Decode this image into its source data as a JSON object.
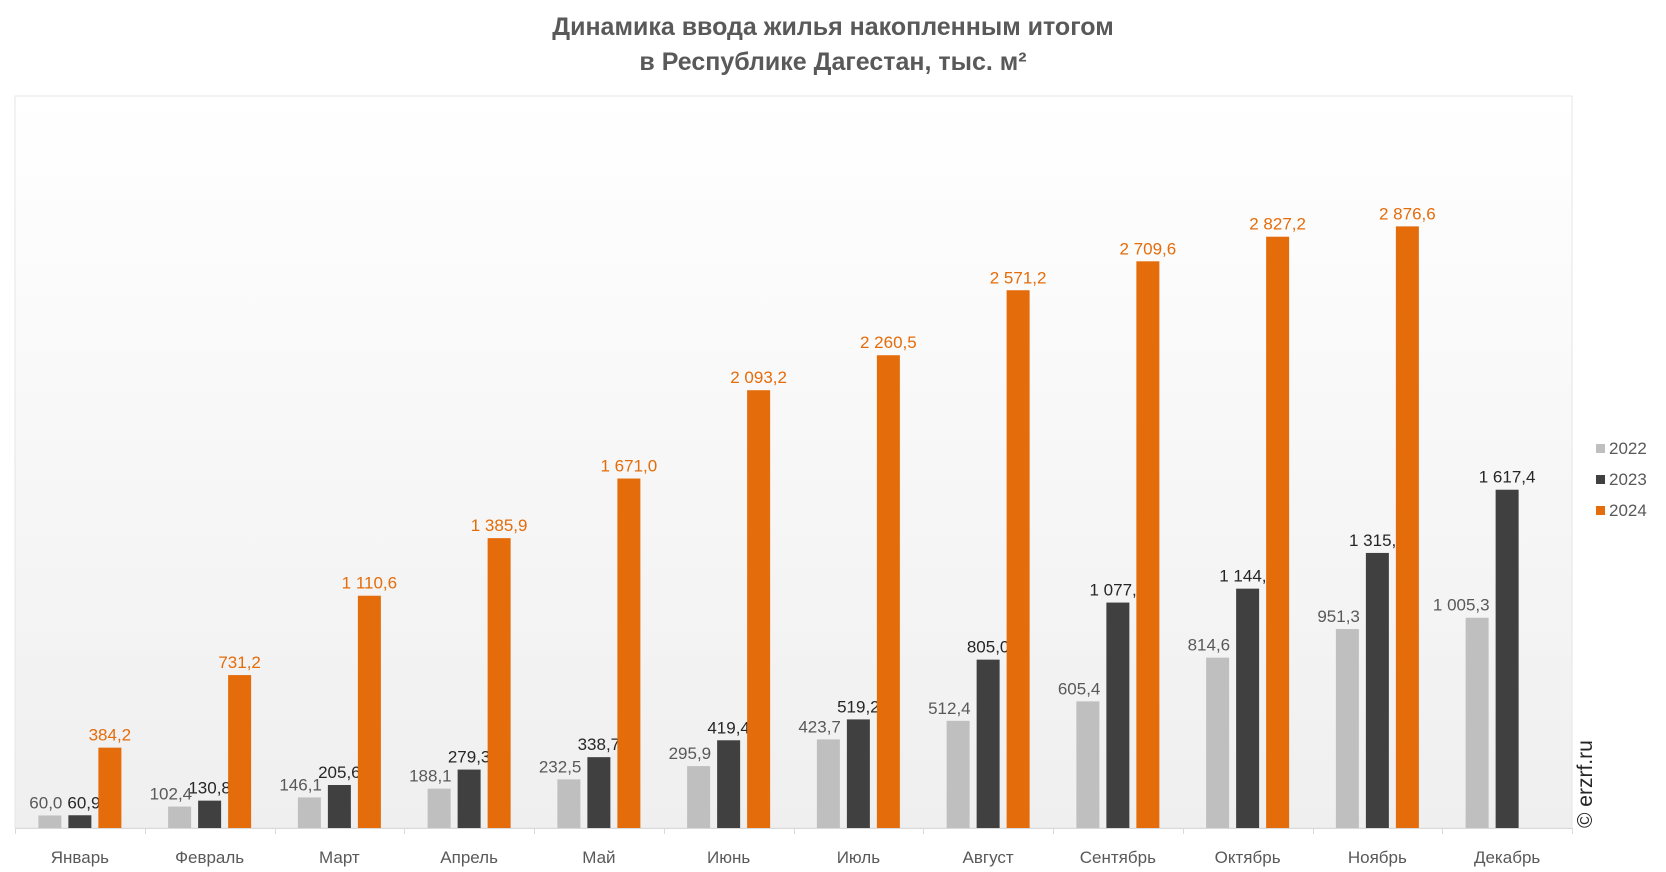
{
  "title_line1": "Динамика ввода жилья накопленным итогом",
  "title_line2": "в Республике Дагестан, тыс. м²",
  "copyright": "© erzrf.ru",
  "chart_data": {
    "type": "bar",
    "title": "Динамика ввода жилья накопленным итогом в Республике Дагестан, тыс. м²",
    "xlabel": "",
    "ylabel": "",
    "ylim": [
      0,
      3500
    ],
    "grid": false,
    "legend_position": "right",
    "categories": [
      "Январь",
      "Февраль",
      "Март",
      "Апрель",
      "Май",
      "Июнь",
      "Июль",
      "Август",
      "Сентябрь",
      "Октябрь",
      "Ноябрь",
      "Декабрь"
    ],
    "series": [
      {
        "name": "2022",
        "color": "#bfbfbf",
        "label_color": "#595959",
        "values": [
          60.0,
          102.4,
          146.1,
          188.1,
          232.5,
          295.9,
          423.7,
          512.4,
          605.4,
          814.6,
          951.3,
          1005.3
        ],
        "labels": [
          "60,0",
          "102,4",
          "146,1",
          "188,1",
          "232,5",
          "295,9",
          "423,7",
          "512,4",
          "605,4",
          "814,6",
          "951,3",
          "1 005,3"
        ]
      },
      {
        "name": "2023",
        "color": "#404040",
        "label_color": "#262626",
        "values": [
          60.9,
          130.8,
          205.6,
          279.3,
          338.7,
          419.4,
          519.2,
          805.0,
          1077.9,
          1144.4,
          1315.2,
          1617.4
        ],
        "labels": [
          "60,9",
          "130,8",
          "205,6",
          "279,3",
          "338,7",
          "419,4",
          "519,2",
          "805,0",
          "1 077,9",
          "1 144,4",
          "1 315,2",
          "1 617,4"
        ]
      },
      {
        "name": "2024",
        "color": "#e46c0a",
        "label_color": "#e46c0a",
        "values": [
          384.2,
          731.2,
          1110.6,
          1385.9,
          1671.0,
          2093.2,
          2260.5,
          2571.2,
          2709.6,
          2827.2,
          2876.6,
          null
        ],
        "labels": [
          "384,2",
          "731,2",
          "1 110,6",
          "1 385,9",
          "1 671,0",
          "2 093,2",
          "2 260,5",
          "2 571,2",
          "2 709,6",
          "2 827,2",
          "2 876,6",
          null
        ]
      }
    ]
  }
}
